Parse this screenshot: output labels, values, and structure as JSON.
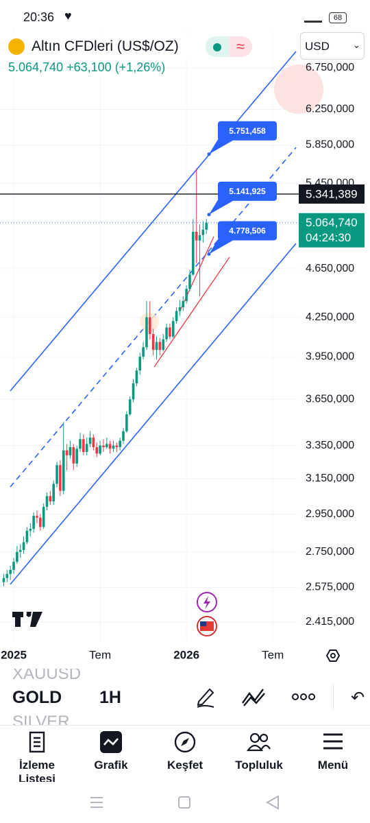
{
  "status_bar": {
    "time": "20:36",
    "battery": "68"
  },
  "header": {
    "title": "Altın CFDleri (US$/OZ)",
    "price": "5.064,740",
    "change": "+63,100",
    "change_percent": "(+1,26%)",
    "currency": "USD"
  },
  "chart_data": {
    "type": "candlestick",
    "log_scale": true,
    "grid": true,
    "colors": {
      "up": "#089981",
      "down": "#f23645"
    },
    "xlim": [
      -4.13,
      85.8
    ],
    "xticks": [
      {
        "value": 0,
        "label": "2025"
      },
      {
        "value": 26,
        "label": "Tem"
      },
      {
        "value": 52,
        "label": "2026"
      },
      {
        "value": 78,
        "label": "Tem"
      }
    ],
    "ylim": [
      2330,
      7276
    ],
    "yticks": [
      {
        "value": 6750,
        "label": "6.750,000"
      },
      {
        "value": 6250,
        "label": "6.250,000"
      },
      {
        "value": 5850,
        "label": "5.850,000"
      },
      {
        "value": 5450,
        "label": "5.450,000"
      },
      {
        "value": 4650,
        "label": "4.650,000"
      },
      {
        "value": 4250,
        "label": "4.250,000"
      },
      {
        "value": 3950,
        "label": "3.950,000"
      },
      {
        "value": 3650,
        "label": "3.650,000"
      },
      {
        "value": 3350,
        "label": "3.350,000"
      },
      {
        "value": 3150,
        "label": "3.150,000"
      },
      {
        "value": 2950,
        "label": "2.950,000"
      },
      {
        "value": 2750,
        "label": "2.750,000"
      },
      {
        "value": 2575,
        "label": "2.575,000"
      },
      {
        "value": 2415,
        "label": "2.415,000"
      }
    ],
    "x": [
      -3,
      -2,
      -1,
      0,
      1,
      2,
      3,
      4,
      5,
      6,
      7,
      8,
      9,
      10,
      11,
      12,
      13,
      14,
      15,
      16,
      17,
      18,
      19,
      20,
      21,
      22,
      23,
      24,
      25,
      26,
      27,
      28,
      29,
      30,
      31,
      32,
      33,
      34,
      35,
      36,
      37,
      38,
      39,
      40,
      41,
      42,
      43,
      44,
      45,
      46,
      47,
      48,
      49,
      50,
      51,
      52,
      53,
      54,
      55,
      56,
      57,
      58
    ],
    "candles": [
      [
        2600,
        2640,
        2580,
        2620
      ],
      [
        2620,
        2660,
        2600,
        2640
      ],
      [
        2640,
        2680,
        2610,
        2660
      ],
      [
        2660,
        2720,
        2640,
        2700
      ],
      [
        2700,
        2780,
        2690,
        2750
      ],
      [
        2750,
        2790,
        2720,
        2760
      ],
      [
        2760,
        2830,
        2740,
        2800
      ],
      [
        2800,
        2880,
        2790,
        2860
      ],
      [
        2860,
        2900,
        2830,
        2870
      ],
      [
        2870,
        2960,
        2850,
        2940
      ],
      [
        2940,
        2970,
        2900,
        2930
      ],
      [
        2930,
        2950,
        2860,
        2880
      ],
      [
        2880,
        3010,
        2870,
        2990
      ],
      [
        2990,
        3070,
        2970,
        3050
      ],
      [
        3050,
        3080,
        3000,
        3020
      ],
      [
        3020,
        3140,
        3000,
        3120
      ],
      [
        3120,
        3250,
        3100,
        3230
      ],
      [
        3230,
        3260,
        3050,
        3080
      ],
      [
        3080,
        3500,
        3060,
        3320
      ],
      [
        3320,
        3360,
        3200,
        3290
      ],
      [
        3290,
        3380,
        3270,
        3340
      ],
      [
        3340,
        3360,
        3200,
        3240
      ],
      [
        3240,
        3350,
        3220,
        3330
      ],
      [
        3330,
        3430,
        3310,
        3390
      ],
      [
        3390,
        3420,
        3290,
        3310
      ],
      [
        3310,
        3400,
        3290,
        3360
      ],
      [
        3360,
        3440,
        3340,
        3400
      ],
      [
        3400,
        3420,
        3320,
        3340
      ],
      [
        3340,
        3370,
        3280,
        3300
      ],
      [
        3300,
        3380,
        3290,
        3350
      ],
      [
        3350,
        3390,
        3310,
        3340
      ],
      [
        3340,
        3400,
        3330,
        3360
      ],
      [
        3360,
        3380,
        3300,
        3330
      ],
      [
        3330,
        3380,
        3310,
        3350
      ],
      [
        3350,
        3370,
        3310,
        3340
      ],
      [
        3340,
        3400,
        3320,
        3380
      ],
      [
        3380,
        3460,
        3360,
        3440
      ],
      [
        3440,
        3570,
        3430,
        3550
      ],
      [
        3550,
        3670,
        3540,
        3650
      ],
      [
        3650,
        3790,
        3630,
        3760
      ],
      [
        3760,
        3870,
        3740,
        3850
      ],
      [
        3850,
        3980,
        3820,
        3950
      ],
      [
        3950,
        4060,
        3930,
        4020
      ],
      [
        4020,
        4380,
        4000,
        4250
      ],
      [
        4250,
        4380,
        4080,
        4120
      ],
      [
        4120,
        4160,
        3960,
        4000
      ],
      [
        4000,
        4100,
        3930,
        4060
      ],
      [
        4060,
        4090,
        3960,
        4000
      ],
      [
        4000,
        4120,
        3990,
        4080
      ],
      [
        4080,
        4200,
        4060,
        4170
      ],
      [
        4170,
        4200,
        4080,
        4100
      ],
      [
        4100,
        4250,
        4090,
        4220
      ],
      [
        4220,
        4330,
        4200,
        4300
      ],
      [
        4300,
        4390,
        4260,
        4330
      ],
      [
        4330,
        4420,
        4300,
        4380
      ],
      [
        4380,
        4510,
        4360,
        4480
      ],
      [
        4480,
        4640,
        4460,
        4600
      ],
      [
        4600,
        5100,
        4590,
        4980
      ],
      [
        4980,
        5600,
        4700,
        4900
      ],
      [
        4900,
        5050,
        4420,
        4950
      ],
      [
        4950,
        5080,
        4880,
        5000
      ],
      [
        5000,
        5100,
        4960,
        5064.74
      ]
    ],
    "horizontal_line": {
      "value": 5341.389,
      "label": "5.341,389"
    },
    "last_price": {
      "value": 5064.74,
      "label": "5.064,740",
      "countdown": "04:24:30"
    },
    "callouts": [
      {
        "value": 5751.458,
        "label": "5.751,458"
      },
      {
        "value": 5141.925,
        "label": "5.141,925"
      },
      {
        "value": 4778.506,
        "label": "4.778,506"
      }
    ]
  },
  "symbols": [
    "XAUUSD",
    "GOLD",
    "SILVER"
  ],
  "interval": "1H",
  "nav": [
    "İzleme Listesi",
    "Grafik",
    "Keşfet",
    "Topluluk",
    "Menü"
  ]
}
